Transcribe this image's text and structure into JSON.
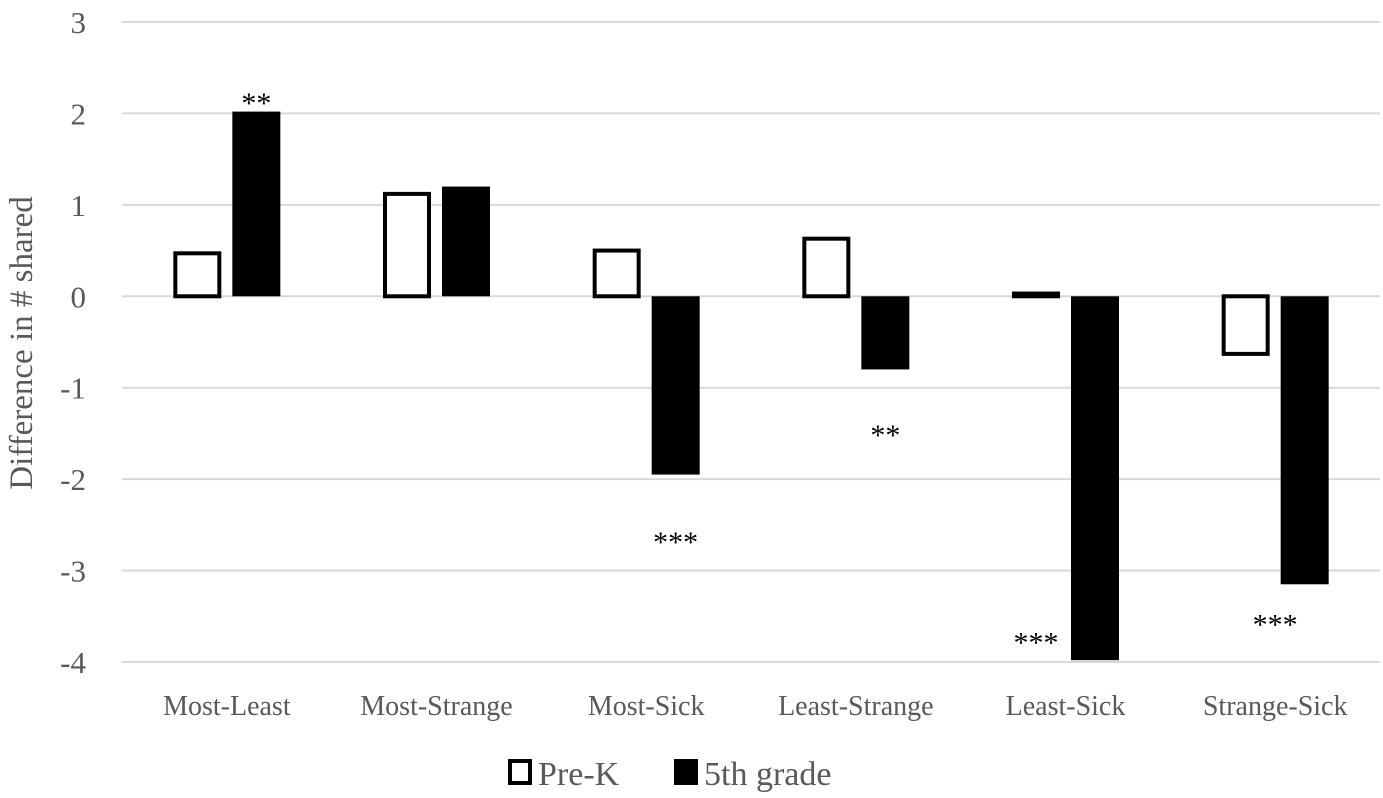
{
  "chart_data": {
    "type": "bar",
    "title": "",
    "xlabel": "",
    "ylabel": "Difference in # shared",
    "ylim": [
      -4,
      3
    ],
    "yticks": [
      3,
      2,
      1,
      0,
      -1,
      -2,
      -3,
      -4
    ],
    "ytick_labels": [
      "3",
      "2",
      "1",
      "0",
      "-1",
      "-2",
      "-3",
      "-4"
    ],
    "grid": true,
    "legend_position": "bottom",
    "categories": [
      "Most-Least",
      "Most-Strange",
      "Most-Sick",
      "Least-Strange",
      "Least-Sick",
      "Strange-Sick"
    ],
    "series": [
      {
        "name": "Pre-K",
        "style": "outline",
        "color": "#000000",
        "values": [
          0.47,
          1.12,
          0.5,
          0.63,
          0.03,
          -0.63
        ]
      },
      {
        "name": "5th grade",
        "style": "filled",
        "color": "#000000",
        "values": [
          2.02,
          1.2,
          -1.95,
          -0.8,
          -3.98,
          -3.15
        ]
      }
    ],
    "annotations": [
      {
        "category_index": 0,
        "series_index": 1,
        "text": "**",
        "value": 2.2,
        "anchor": "middle"
      },
      {
        "category_index": 2,
        "series_index": 1,
        "text": "***",
        "value": -2.6,
        "anchor": "middle"
      },
      {
        "category_index": 3,
        "series_index": 0,
        "text": "**",
        "value": -1.43,
        "anchor": "after-series"
      },
      {
        "category_index": 4,
        "series_index": 0,
        "text": "***",
        "value": -3.7,
        "anchor": "middle"
      },
      {
        "category_index": 5,
        "series_index": 1,
        "text": "***",
        "value": -3.5,
        "anchor": "between"
      }
    ]
  }
}
